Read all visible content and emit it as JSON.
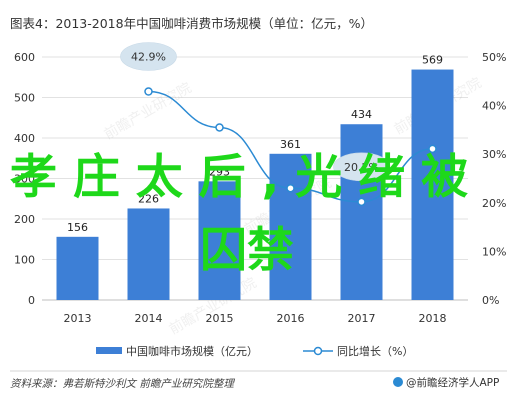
{
  "figure": {
    "title": "图表4：2013-2018年中国咖啡消费市场规模（单位：亿元，%）",
    "source": "资料来源：弗若斯特沙利文 前瞻产业研究院整理",
    "logo_text": "@前瞻经济学人APP",
    "overlay_text_line1": "孝庄太后,光绪被",
    "overlay_text_line2": "囚禁",
    "watermark": "前瞻产业研究院"
  },
  "chart_data": {
    "type": "bar",
    "categories": [
      "2013",
      "2014",
      "2015",
      "2016",
      "2017",
      "2018"
    ],
    "series": [
      {
        "name": "中国咖啡市场规模（亿元）",
        "type": "bar",
        "axis": "left",
        "values": [
          156,
          226,
          293,
          361,
          434,
          569
        ],
        "labels": [
          "156",
          "226",
          "293",
          "361",
          "434",
          "569"
        ]
      },
      {
        "name": "同比增长（%）",
        "type": "line",
        "axis": "right",
        "values": [
          null,
          42.9,
          35.5,
          23.0,
          20.2,
          31.1
        ]
      }
    ],
    "line_labels": [
      {
        "index": 1,
        "text": "42.9%"
      },
      {
        "index": 4,
        "text": "20.2%"
      }
    ],
    "left_axis": {
      "ylim": [
        0,
        600
      ],
      "ticks": [
        "0",
        "100",
        "200",
        "300",
        "400",
        "500",
        "600"
      ]
    },
    "right_axis": {
      "ylim": [
        0,
        50
      ],
      "ticks": [
        "0%",
        "10%",
        "20%",
        "30%",
        "40%",
        "50%"
      ]
    },
    "grid": true,
    "legend_position": "bottom",
    "colors": {
      "bar": "#3d7fd6",
      "line": "#2b8ad3",
      "bubble": "#d5e4ef",
      "overlay": "#1ed81a"
    }
  }
}
